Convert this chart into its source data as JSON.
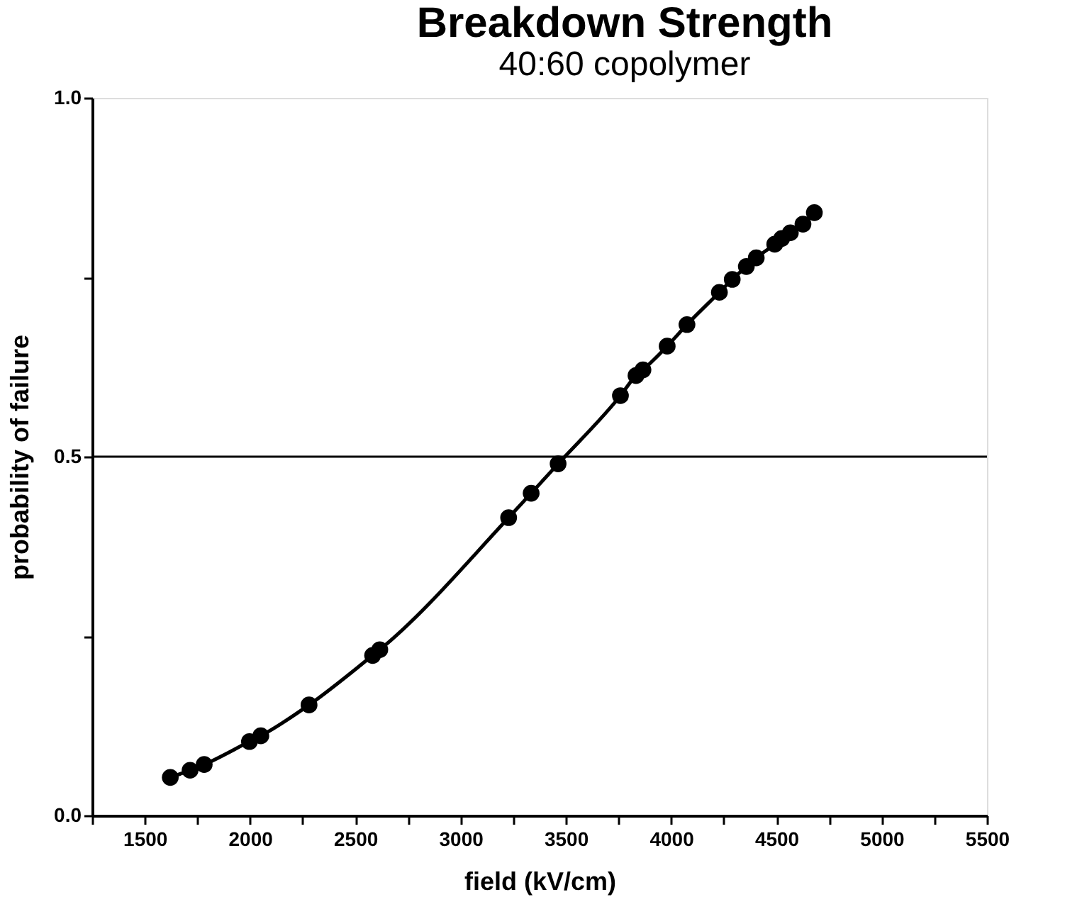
{
  "chart_data": {
    "type": "line",
    "title": "Breakdown Strength",
    "subtitle": "40:60 copolymer",
    "xlabel": "field (kV/cm)",
    "ylabel": "probability of failure",
    "x": [
      1621,
      1715,
      1782,
      1997,
      2051,
      2280,
      2582,
      2616,
      3228,
      3335,
      3463,
      3759,
      3833,
      3866,
      3981,
      4075,
      4229,
      4290,
      4357,
      4404,
      4492,
      4525,
      4566,
      4626,
      4680
    ],
    "series": [
      {
        "color": "#000000",
        "values": [
          0.053,
          0.063,
          0.071,
          0.103,
          0.111,
          0.154,
          0.223,
          0.231,
          0.415,
          0.449,
          0.49,
          0.585,
          0.613,
          0.621,
          0.654,
          0.684,
          0.729,
          0.747,
          0.765,
          0.777,
          0.796,
          0.804,
          0.812,
          0.824,
          0.84
        ]
      }
    ],
    "xlim": [
      1250,
      5500
    ],
    "xticks": [
      {
        "value": 1250,
        "label": null
      },
      1500,
      {
        "value": 1750,
        "label": null
      },
      2000,
      {
        "value": 2250,
        "label": null
      },
      2500,
      {
        "value": 2750,
        "label": null
      },
      3000,
      {
        "value": 3250,
        "label": null
      },
      3500,
      {
        "value": 3750,
        "label": null
      },
      4000,
      {
        "value": 4250,
        "label": null
      },
      4500,
      {
        "value": 4750,
        "label": null
      },
      5000,
      {
        "value": 5250,
        "label": null
      },
      5500
    ],
    "ylim": [
      0,
      1
    ],
    "yticks": [
      {
        "value": 0,
        "label": "0.0"
      },
      {
        "value": 0.25,
        "label": null
      },
      {
        "value": 0.5,
        "label": "0.5"
      },
      {
        "value": 0.75,
        "label": null
      },
      {
        "value": 1,
        "label": "1.0"
      }
    ],
    "ref_lines": [
      {
        "axis": "y",
        "value": 0.5,
        "color": "#000000"
      }
    ],
    "marker": "circle",
    "line_style": "solid",
    "grid": false
  }
}
